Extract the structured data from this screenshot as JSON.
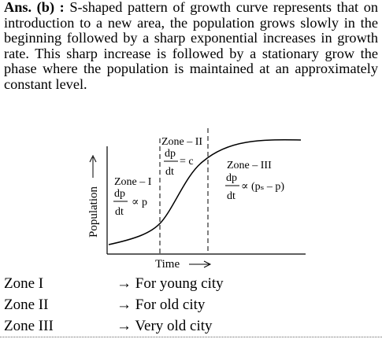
{
  "answer": {
    "label": "Ans. (b) :",
    "text": "S-shaped pattern of growth curve represents that on introduction to a new area, the population grows slowly in the beginning followed by a sharp exponential increases in growth rate. This sharp increase is followed by a stationary grow the phase where the population is maintained at an approximately constant level."
  },
  "figure": {
    "y_axis_label": "Population",
    "x_axis_label": "Time",
    "zones": [
      {
        "name": "Zone – I",
        "numerator": "dp",
        "denominator": "dt",
        "relation": "∝ p"
      },
      {
        "name": "Zone – II",
        "numerator": "dp",
        "denominator": "dt",
        "relation": "= c"
      },
      {
        "name": "Zone – III",
        "numerator": "dp",
        "denominator": "dt",
        "relation": "∝ (pₛ – p)"
      }
    ]
  },
  "matches": [
    {
      "zone": "Zone I",
      "description": "→ For young city"
    },
    {
      "zone": "Zone II",
      "description": "→ For old city"
    },
    {
      "zone": "Zone III",
      "description": "→ Very old city"
    }
  ]
}
